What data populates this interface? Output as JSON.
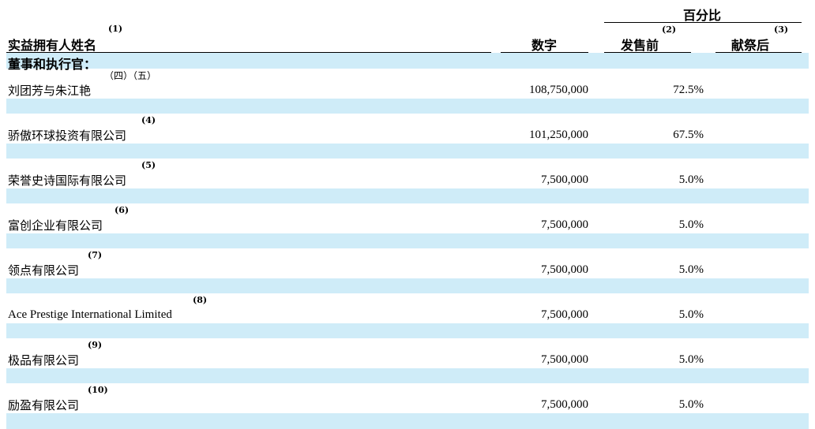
{
  "header": {
    "group_label": "百分比",
    "name_col": "实益拥有人姓名",
    "name_col_note": "(1)",
    "number_col": "数字",
    "before_col": "发售前",
    "before_col_note": "(2)",
    "after_col": "献祭后",
    "after_col_note": "(3)"
  },
  "section_label": "董事和执行官：",
  "rows": [
    {
      "name": "刘团芳与朱江艳",
      "note": "（四）（五）",
      "number": "108,750,000",
      "before": "72.5%",
      "after": ""
    },
    {
      "name": "骄傲环球投资有限公司",
      "note": "(4)",
      "number": "101,250,000",
      "before": "67.5%",
      "after": ""
    },
    {
      "name": "荣誉史诗国际有限公司",
      "note": "(5)",
      "number": "7,500,000",
      "before": "5.0%",
      "after": ""
    },
    {
      "name": "富创企业有限公司",
      "note": "(6)",
      "number": "7,500,000",
      "before": "5.0%",
      "after": ""
    },
    {
      "name": "领点有限公司",
      "note": "(7)",
      "number": "7,500,000",
      "before": "5.0%",
      "after": ""
    },
    {
      "name": "Ace Prestige International Limited",
      "note": "(8)",
      "number": "7,500,000",
      "before": "5.0%",
      "after": ""
    },
    {
      "name": "极品有限公司",
      "note": "(9)",
      "number": "7,500,000",
      "before": "5.0%",
      "after": ""
    },
    {
      "name": "励盈有限公司",
      "note": "(10)",
      "number": "7,500,000",
      "before": "5.0%",
      "after": ""
    }
  ],
  "colors": {
    "band": "#cfecf8",
    "rule": "#000000"
  }
}
